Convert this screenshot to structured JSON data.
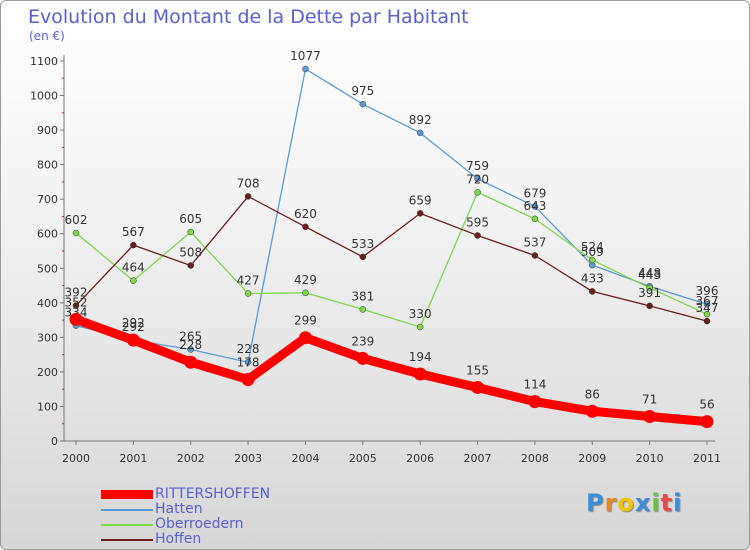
{
  "title": "Evolution du Montant de la Dette par Habitant",
  "subtitle": "(en €)",
  "logo": {
    "text": "Proxiti",
    "letter_colors": [
      "#3a8fd8",
      "#e8842a",
      "#f2c400",
      "#3a8fd8",
      "#6cc04a",
      "#e84a4a",
      "#3a8fd8"
    ]
  },
  "chart_data": {
    "type": "line",
    "title": "Evolution du Montant de la Dette par Habitant",
    "ylabel": "(en €)",
    "xlabel": "",
    "ylim": [
      0,
      1100
    ],
    "yticks": [
      0,
      100,
      200,
      300,
      400,
      500,
      600,
      700,
      800,
      900,
      1000,
      1100
    ],
    "grid": false,
    "legend_position": "bottom-left",
    "categories": [
      "2000",
      "2001",
      "2002",
      "2003",
      "2004",
      "2005",
      "2006",
      "2007",
      "2008",
      "2009",
      "2010",
      "2011"
    ],
    "series": [
      {
        "name": "RITTERSHOFFEN",
        "color": "#ff0000",
        "values": [
          352,
          292,
          228,
          178,
          299,
          239,
          194,
          155,
          114,
          86,
          71,
          56
        ]
      },
      {
        "name": "Hatten",
        "color": "#5a9bd4",
        "values": [
          334,
          292,
          265,
          228,
          1077,
          975,
          892,
          759,
          679,
          509,
          448,
          396
        ]
      },
      {
        "name": "Oberroedern",
        "color": "#7dd84a",
        "values": [
          602,
          464,
          605,
          427,
          429,
          381,
          330,
          720,
          643,
          524,
          443,
          367
        ]
      },
      {
        "name": "Hoffen",
        "color": "#6b1e1e",
        "values": [
          392,
          567,
          508,
          708,
          620,
          533,
          659,
          595,
          537,
          433,
          391,
          347
        ]
      }
    ]
  }
}
